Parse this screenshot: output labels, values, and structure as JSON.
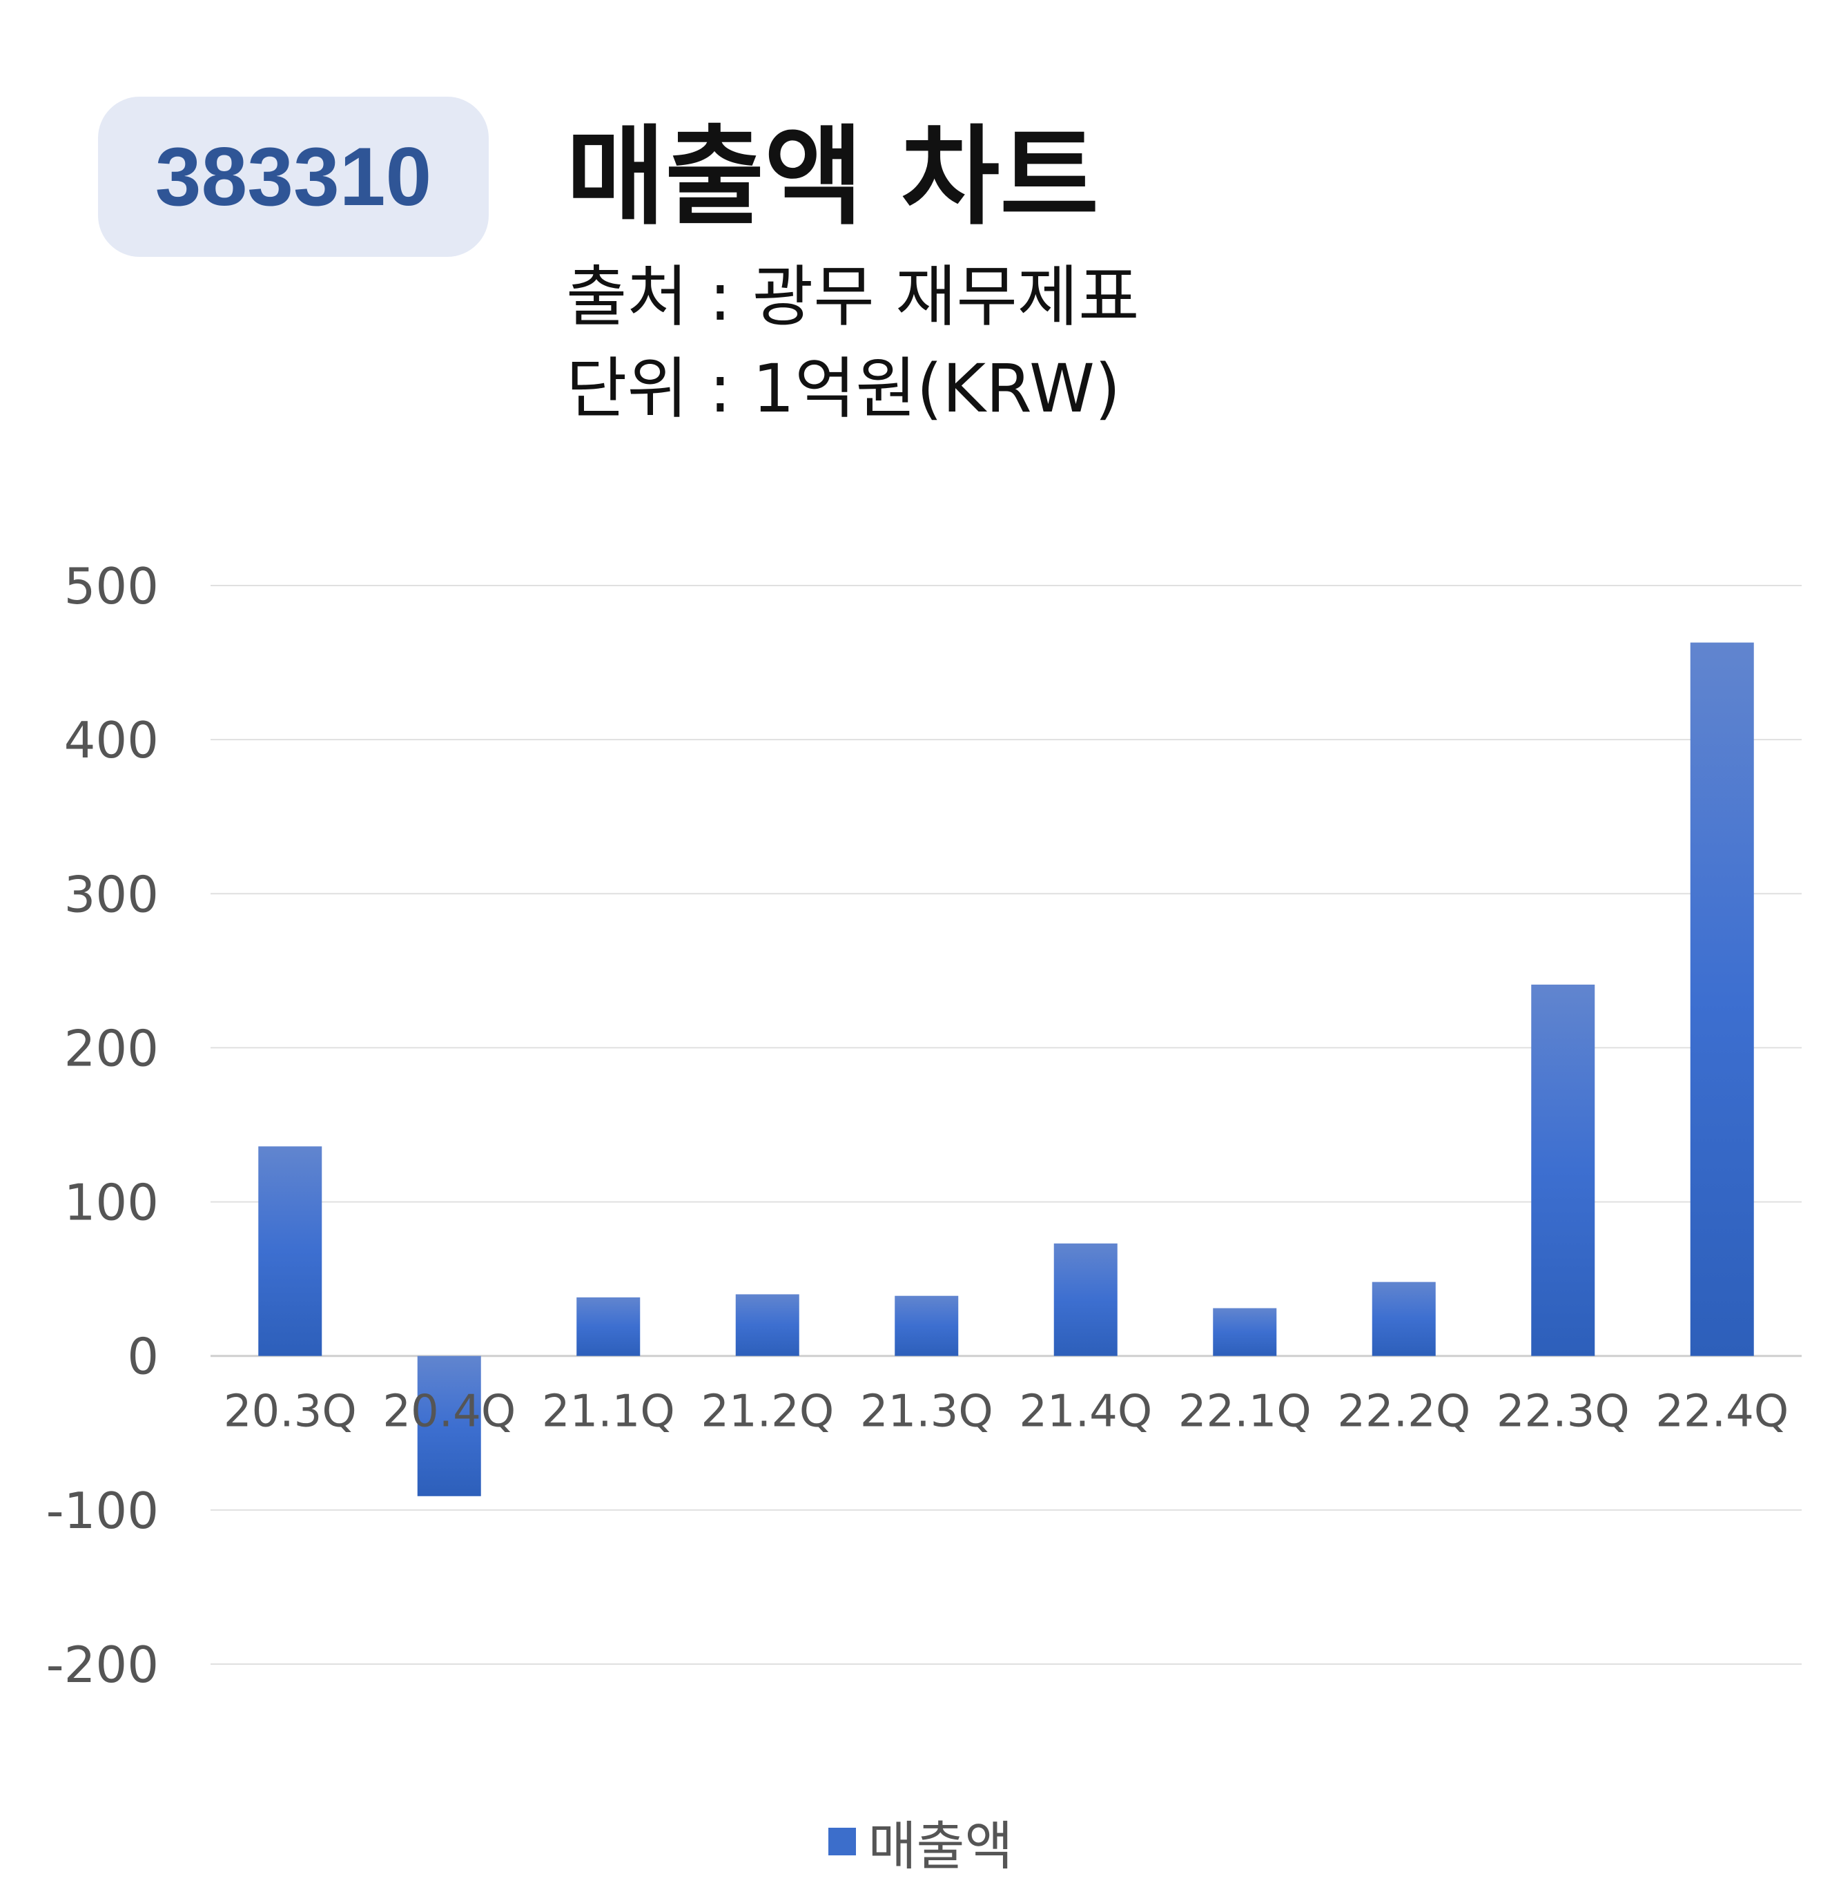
{
  "header": {
    "ticker": "383310",
    "title": "매출액 차트",
    "source": "출처 : 광무 재무제표",
    "unit": "단위 : 1억원(KRW)"
  },
  "chart_data": {
    "type": "bar",
    "categories": [
      "20.3Q",
      "20.4Q",
      "21.1Q",
      "21.2Q",
      "21.3Q",
      "21.4Q",
      "22.1Q",
      "22.2Q",
      "22.3Q",
      "22.4Q"
    ],
    "series": [
      {
        "name": "매출액",
        "values": [
          136,
          -91,
          38,
          40,
          39,
          73,
          31,
          48,
          241,
          463
        ],
        "color": "#3c6ecb"
      }
    ],
    "ylim": [
      -200,
      500
    ],
    "yticks": [
      500,
      400,
      300,
      200,
      100,
      0,
      -100,
      -200
    ],
    "grid": true,
    "legend_position": "bottom"
  }
}
